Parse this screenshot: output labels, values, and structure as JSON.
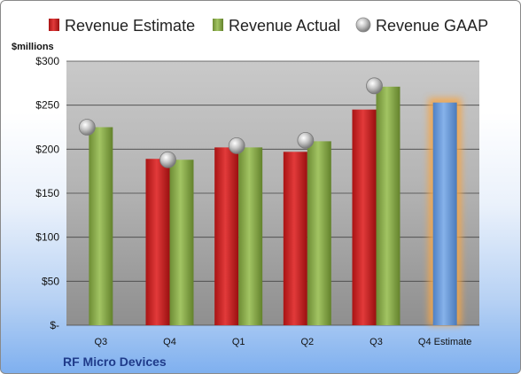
{
  "chart_data": {
    "type": "bar",
    "ylabel": "$millions",
    "ylim": [
      0,
      300
    ],
    "yticks": [
      "$-",
      "$50",
      "$100",
      "$150",
      "$200",
      "$250",
      "$300"
    ],
    "categories": [
      "Q3",
      "Q4",
      "Q1",
      "Q2",
      "Q3",
      "Q4 Estimate"
    ],
    "series": [
      {
        "name": "Revenue Estimate",
        "kind": "bar",
        "values": [
          null,
          189,
          202,
          197,
          245,
          null
        ]
      },
      {
        "name": "Revenue Actual",
        "kind": "bar",
        "values": [
          225,
          188,
          202,
          209,
          271,
          null
        ]
      },
      {
        "name": "Revenue GAAP",
        "kind": "point",
        "values": [
          225,
          188,
          204,
          210,
          272,
          null
        ]
      },
      {
        "name": "",
        "kind": "bar-highlight",
        "values": [
          null,
          null,
          null,
          null,
          null,
          253
        ]
      }
    ],
    "legend_position": "top",
    "grid": true,
    "colors": {
      "estimate": "#d42a2a",
      "actual": "#8cb04a",
      "gaap": "#bdbdbd",
      "highlight": "#6fa0de",
      "highlight_glow": "#f4a64a"
    },
    "footer_label": "RF Micro Devices"
  }
}
